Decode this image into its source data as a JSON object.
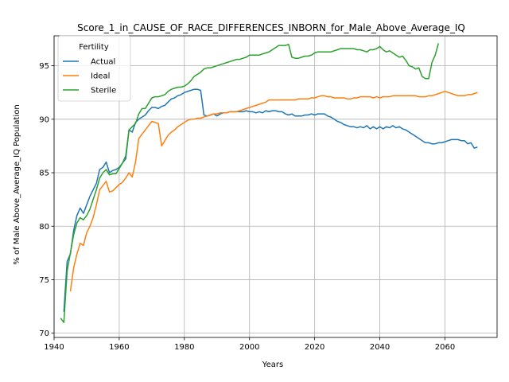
{
  "chart_data": {
    "type": "line",
    "title": "Score_1_in_CAUSE_OF_RACE_DIFFERENCES_INBORN_for_Male_Above_Average_IQ",
    "xlabel": "Years",
    "ylabel": "% of Male Above_Average_IQ Population",
    "xlim": [
      1940,
      2076
    ],
    "ylim": [
      69.6,
      97.8
    ],
    "xticks": [
      1940,
      1960,
      1980,
      2000,
      2020,
      2040,
      2060
    ],
    "yticks": [
      70,
      75,
      80,
      85,
      90,
      95
    ],
    "grid": true,
    "legend": {
      "title": "Fertility",
      "position": "top-left"
    },
    "series": [
      {
        "name": "Actual",
        "color": "#1f77b4",
        "x": [
          1943,
          1944,
          1945,
          1946,
          1947,
          1948,
          1949,
          1950,
          1951,
          1952,
          1953,
          1954,
          1955,
          1956,
          1957,
          1958,
          1959,
          1960,
          1961,
          1962,
          1963,
          1964,
          1965,
          1966,
          1967,
          1968,
          1969,
          1970,
          1971,
          1972,
          1973,
          1974,
          1975,
          1976,
          1977,
          1978,
          1979,
          1980,
          1981,
          1982,
          1983,
          1984,
          1985,
          1986,
          1987,
          1988,
          1989,
          1990,
          1991,
          1992,
          1993,
          1994,
          1995,
          1996,
          1997,
          1998,
          1999,
          2000,
          2001,
          2002,
          2003,
          2004,
          2005,
          2006,
          2007,
          2008,
          2009,
          2010,
          2011,
          2012,
          2013,
          2014,
          2015,
          2016,
          2017,
          2018,
          2019,
          2020,
          2021,
          2022,
          2023,
          2024,
          2025,
          2026,
          2027,
          2028,
          2029,
          2030,
          2031,
          2032,
          2033,
          2034,
          2035,
          2036,
          2037,
          2038,
          2039,
          2040,
          2041,
          2042,
          2043,
          2044,
          2045,
          2046,
          2047,
          2048,
          2049,
          2050,
          2051,
          2052,
          2053,
          2054,
          2055,
          2056,
          2057,
          2058,
          2059,
          2060,
          2061,
          2062,
          2063,
          2064,
          2065,
          2066,
          2067,
          2068,
          2069,
          2070
        ],
        "values": [
          72.0,
          76.7,
          77.4,
          79.6,
          81.0,
          81.7,
          81.2,
          82.0,
          82.8,
          83.4,
          84.0,
          85.3,
          85.5,
          86.0,
          85.0,
          85.2,
          85.3,
          85.5,
          85.9,
          86.3,
          89.0,
          88.8,
          89.7,
          90.0,
          90.2,
          90.4,
          90.8,
          91.1,
          91.1,
          91.0,
          91.2,
          91.3,
          91.6,
          91.9,
          92.0,
          92.2,
          92.3,
          92.5,
          92.6,
          92.7,
          92.8,
          92.8,
          92.7,
          90.4,
          90.3,
          90.4,
          90.5,
          90.3,
          90.5,
          90.6,
          90.6,
          90.7,
          90.7,
          90.7,
          90.7,
          90.7,
          90.8,
          90.7,
          90.7,
          90.6,
          90.7,
          90.6,
          90.8,
          90.7,
          90.8,
          90.8,
          90.7,
          90.7,
          90.5,
          90.4,
          90.5,
          90.3,
          90.3,
          90.3,
          90.4,
          90.4,
          90.5,
          90.4,
          90.5,
          90.5,
          90.5,
          90.3,
          90.2,
          90.0,
          89.8,
          89.7,
          89.5,
          89.4,
          89.3,
          89.3,
          89.2,
          89.3,
          89.2,
          89.4,
          89.1,
          89.3,
          89.1,
          89.3,
          89.1,
          89.3,
          89.2,
          89.4,
          89.2,
          89.3,
          89.1,
          89.0,
          88.8,
          88.6,
          88.4,
          88.2,
          88.0,
          87.8,
          87.8,
          87.7,
          87.7,
          87.8,
          87.8,
          87.9,
          88.0,
          88.1,
          88.1,
          88.1,
          88.0,
          88.0,
          87.7,
          87.8,
          87.3,
          87.4
        ]
      },
      {
        "name": "Ideal",
        "color": "#ff7f0e",
        "x": [
          1945,
          1946,
          1947,
          1948,
          1949,
          1950,
          1951,
          1952,
          1953,
          1954,
          1955,
          1956,
          1957,
          1958,
          1959,
          1960,
          1961,
          1962,
          1963,
          1964,
          1965,
          1966,
          1967,
          1968,
          1969,
          1970,
          1971,
          1972,
          1973,
          1974,
          1975,
          1976,
          1977,
          1978,
          1979,
          1980,
          1981,
          1982,
          1983,
          1984,
          1985,
          1986,
          1987,
          1988,
          1989,
          1990,
          1991,
          1992,
          1993,
          1994,
          1995,
          1996,
          1997,
          1998,
          1999,
          2000,
          2001,
          2002,
          2003,
          2004,
          2005,
          2006,
          2007,
          2008,
          2009,
          2010,
          2011,
          2012,
          2013,
          2014,
          2015,
          2016,
          2017,
          2018,
          2019,
          2020,
          2021,
          2022,
          2023,
          2024,
          2025,
          2026,
          2027,
          2028,
          2029,
          2030,
          2031,
          2032,
          2033,
          2034,
          2035,
          2036,
          2037,
          2038,
          2039,
          2040,
          2041,
          2042,
          2043,
          2044,
          2045,
          2046,
          2047,
          2048,
          2049,
          2050,
          2051,
          2052,
          2053,
          2054,
          2055,
          2056,
          2057,
          2058,
          2059,
          2060,
          2061,
          2062,
          2063,
          2064,
          2065,
          2066,
          2067,
          2068,
          2069,
          2070
        ],
        "values": [
          73.9,
          76.1,
          77.4,
          78.4,
          78.2,
          79.4,
          80.0,
          80.8,
          82.0,
          83.4,
          83.8,
          84.2,
          83.2,
          83.3,
          83.6,
          83.9,
          84.1,
          84.5,
          85.0,
          84.6,
          86.0,
          88.2,
          88.6,
          89.0,
          89.4,
          89.8,
          89.7,
          89.6,
          87.5,
          88.0,
          88.5,
          88.8,
          89.0,
          89.3,
          89.5,
          89.7,
          89.9,
          90.0,
          90.0,
          90.1,
          90.1,
          90.2,
          90.3,
          90.4,
          90.5,
          90.5,
          90.6,
          90.6,
          90.6,
          90.7,
          90.7,
          90.7,
          90.8,
          90.9,
          91.0,
          91.1,
          91.2,
          91.3,
          91.4,
          91.5,
          91.6,
          91.8,
          91.8,
          91.8,
          91.8,
          91.8,
          91.8,
          91.8,
          91.8,
          91.8,
          91.9,
          91.9,
          91.9,
          91.9,
          92.0,
          92.0,
          92.1,
          92.2,
          92.2,
          92.1,
          92.1,
          92.0,
          92.0,
          92.0,
          92.0,
          91.9,
          91.9,
          92.0,
          92.0,
          92.1,
          92.1,
          92.1,
          92.1,
          92.0,
          92.1,
          92.0,
          92.1,
          92.1,
          92.1,
          92.2,
          92.2,
          92.2,
          92.2,
          92.2,
          92.2,
          92.2,
          92.2,
          92.1,
          92.1,
          92.1,
          92.2,
          92.2,
          92.3,
          92.4,
          92.5,
          92.6,
          92.5,
          92.4,
          92.3,
          92.2,
          92.2,
          92.2,
          92.3,
          92.3,
          92.4,
          92.5
        ]
      },
      {
        "name": "Sterile",
        "color": "#2ca02c",
        "x": [
          1942,
          1943,
          1944,
          1945,
          1946,
          1947,
          1948,
          1949,
          1950,
          1951,
          1952,
          1953,
          1954,
          1955,
          1956,
          1957,
          1958,
          1959,
          1960,
          1961,
          1962,
          1963,
          1964,
          1965,
          1966,
          1967,
          1968,
          1969,
          1970,
          1971,
          1972,
          1973,
          1974,
          1975,
          1976,
          1977,
          1978,
          1979,
          1980,
          1981,
          1982,
          1983,
          1984,
          1985,
          1986,
          1987,
          1988,
          1989,
          1990,
          1991,
          1992,
          1993,
          1994,
          1995,
          1996,
          1997,
          1998,
          1999,
          2000,
          2001,
          2002,
          2003,
          2004,
          2005,
          2006,
          2007,
          2008,
          2009,
          2010,
          2011,
          2012,
          2013,
          2014,
          2015,
          2016,
          2017,
          2018,
          2019,
          2020,
          2021,
          2022,
          2023,
          2024,
          2025,
          2026,
          2027,
          2028,
          2029,
          2030,
          2031,
          2032,
          2033,
          2034,
          2035,
          2036,
          2037,
          2038,
          2039,
          2040,
          2041,
          2042,
          2043,
          2044,
          2045,
          2046,
          2047,
          2048,
          2049,
          2050,
          2051,
          2052,
          2053,
          2054,
          2055,
          2056,
          2057,
          2058
        ],
        "values": [
          71.4,
          71.0,
          75.8,
          77.5,
          79.2,
          80.3,
          80.8,
          80.6,
          81.0,
          81.6,
          82.5,
          83.4,
          84.5,
          85.0,
          85.3,
          84.8,
          84.9,
          84.9,
          85.4,
          85.9,
          86.6,
          89.0,
          89.3,
          89.6,
          90.5,
          91.0,
          91.0,
          91.5,
          92.0,
          92.1,
          92.1,
          92.2,
          92.3,
          92.6,
          92.8,
          92.9,
          93.0,
          93.0,
          93.1,
          93.3,
          93.6,
          94.0,
          94.2,
          94.4,
          94.7,
          94.8,
          94.8,
          94.9,
          95.0,
          95.1,
          95.2,
          95.3,
          95.4,
          95.5,
          95.6,
          95.6,
          95.7,
          95.8,
          96.0,
          96.0,
          96.0,
          96.0,
          96.1,
          96.2,
          96.3,
          96.5,
          96.7,
          96.9,
          96.9,
          96.9,
          97.0,
          95.8,
          95.7,
          95.7,
          95.8,
          95.9,
          95.9,
          96.0,
          96.2,
          96.3,
          96.3,
          96.3,
          96.3,
          96.3,
          96.4,
          96.5,
          96.6,
          96.6,
          96.6,
          96.6,
          96.6,
          96.5,
          96.5,
          96.4,
          96.3,
          96.5,
          96.5,
          96.6,
          96.8,
          96.5,
          96.3,
          96.4,
          96.2,
          96.0,
          95.8,
          95.9,
          95.5,
          95.0,
          94.9,
          94.7,
          94.8,
          94.0,
          93.8,
          93.8,
          95.3,
          96.0,
          97.1
        ]
      }
    ]
  }
}
